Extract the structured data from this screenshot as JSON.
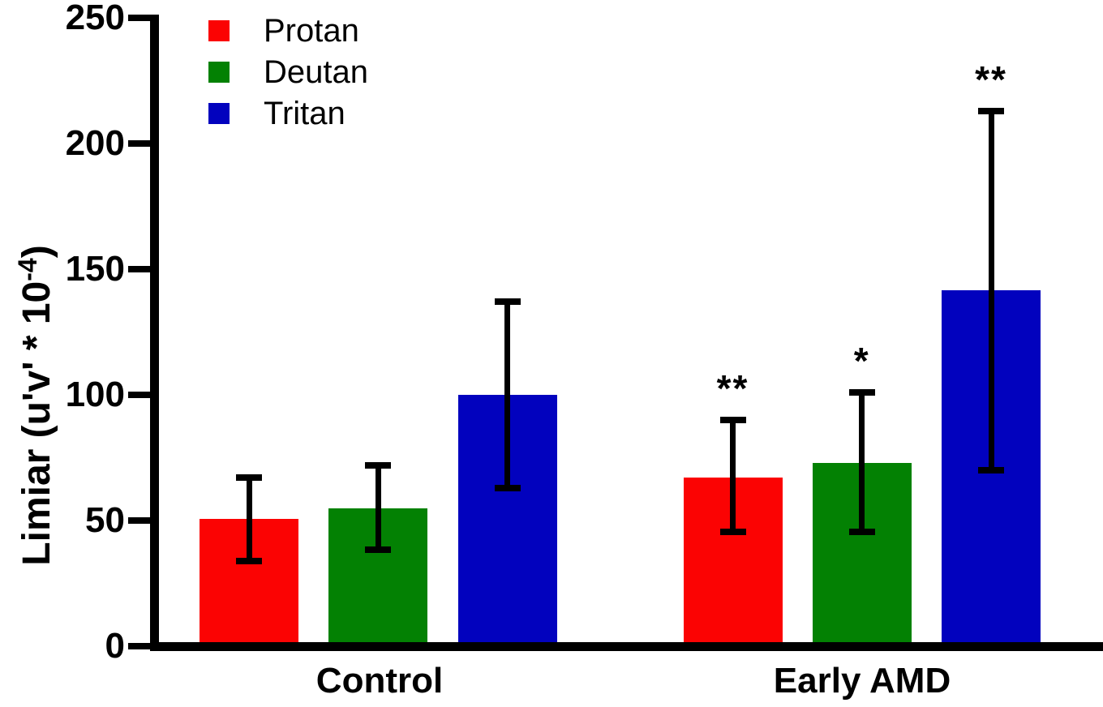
{
  "figure": {
    "background": "#FFFFFF",
    "axis_color": "#000000",
    "text_color": "#000000"
  },
  "chart_data": {
    "type": "bar",
    "title": "",
    "xlabel": "",
    "ylabel_prefix": "Limiar (u'v' * 10",
    "ylabel_exponent": "-4",
    "ylabel_suffix": ")",
    "ylim": [
      0,
      250
    ],
    "yticks": [
      "0",
      "50",
      "100",
      "150",
      "200",
      "250"
    ],
    "ytick_values": [
      0,
      50,
      100,
      150,
      200,
      250
    ],
    "grid": false,
    "legend_position": "top-left",
    "error_bars": "bidirectional",
    "categories": [
      "Control",
      "Early AMD"
    ],
    "series": [
      {
        "name": "Protan",
        "color": "#FB0303",
        "values": [
          50.5,
          67
        ],
        "whisker_low": [
          34,
          45.5
        ],
        "whisker_high": [
          67,
          90
        ],
        "significance": [
          "",
          "**"
        ]
      },
      {
        "name": "Deutan",
        "color": "#038103",
        "values": [
          55,
          73
        ],
        "whisker_low": [
          38.5,
          45.5
        ],
        "whisker_high": [
          72,
          101
        ],
        "significance": [
          "",
          "*"
        ]
      },
      {
        "name": "Tritan",
        "color": "#0202BE",
        "values": [
          100,
          141.5
        ],
        "whisker_low": [
          63,
          70
        ],
        "whisker_high": [
          137,
          213
        ],
        "significance": [
          "",
          "**"
        ]
      }
    ]
  }
}
